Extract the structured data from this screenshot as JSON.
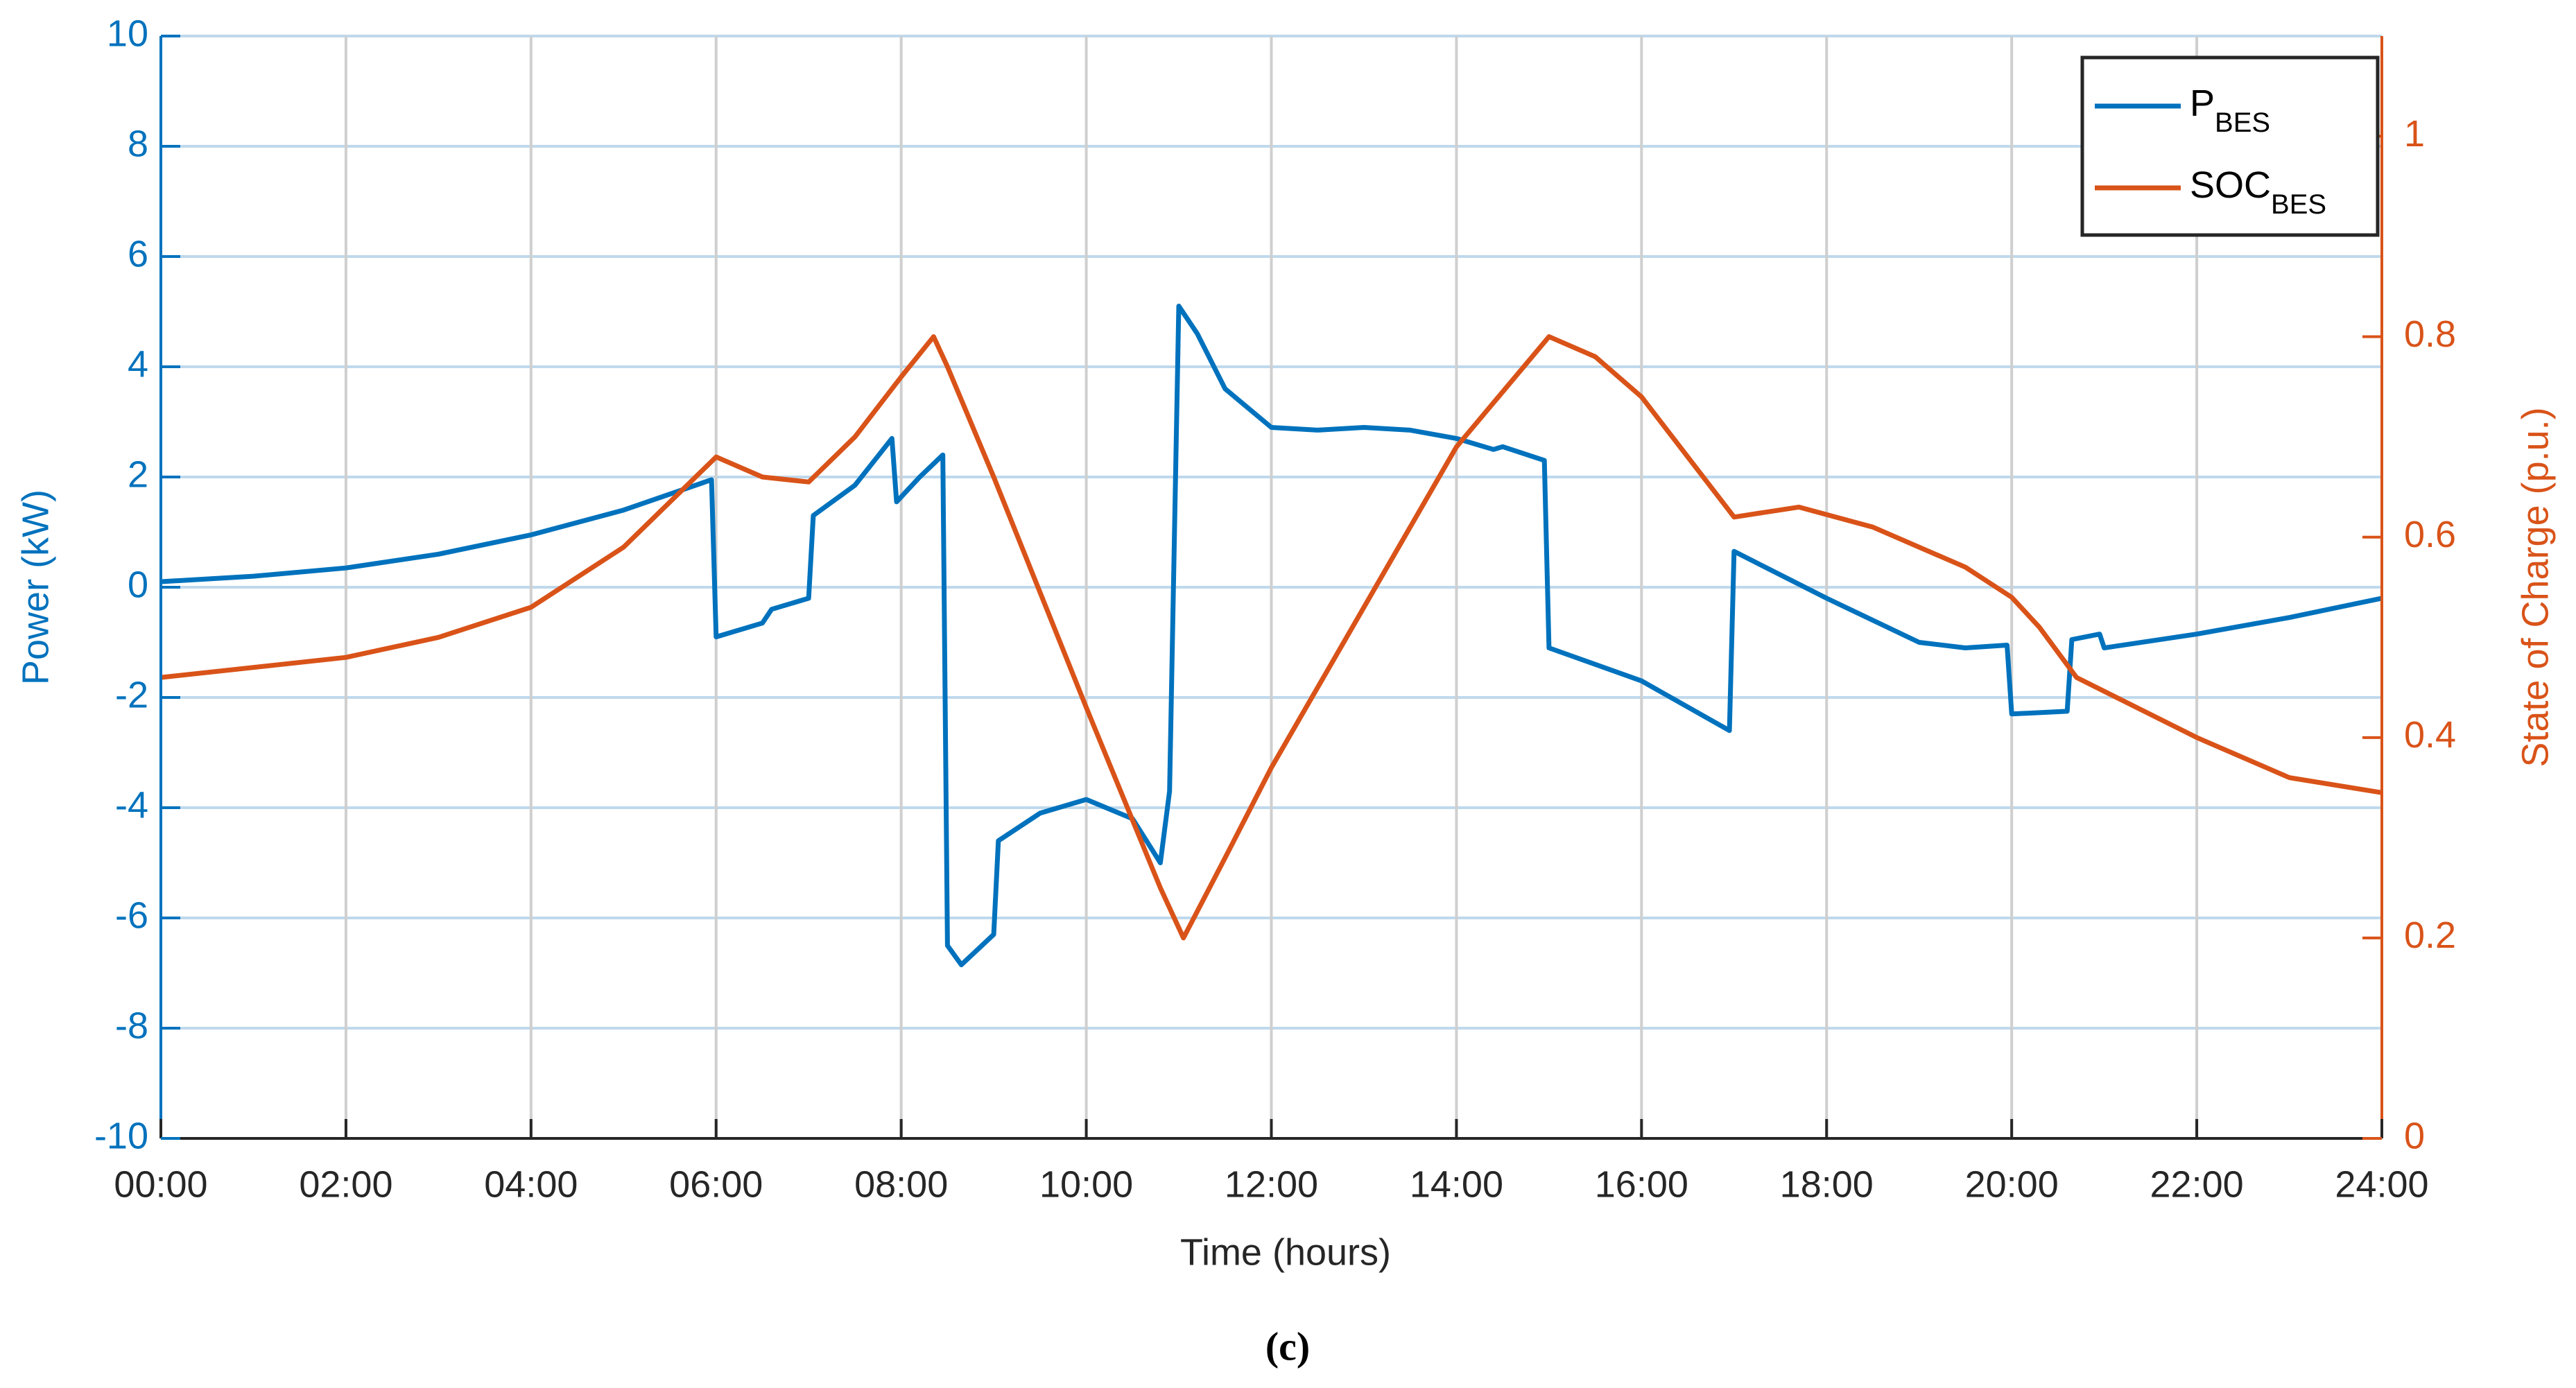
{
  "chart_data": {
    "type": "line",
    "xlabel": "Time (hours)",
    "ylabel": "Power (kW)",
    "y2label": "State of Charge (p.u.)",
    "caption": "(c)",
    "xlim": [
      0,
      24
    ],
    "xticks": [
      {
        "value": 0,
        "label": "00:00"
      },
      {
        "value": 2,
        "label": "02:00"
      },
      {
        "value": 4,
        "label": "04:00"
      },
      {
        "value": 6,
        "label": "06:00"
      },
      {
        "value": 8,
        "label": "08:00"
      },
      {
        "value": 10,
        "label": "10:00"
      },
      {
        "value": 12,
        "label": "12:00"
      },
      {
        "value": 14,
        "label": "14:00"
      },
      {
        "value": 16,
        "label": "16:00"
      },
      {
        "value": 18,
        "label": "18:00"
      },
      {
        "value": 20,
        "label": "20:00"
      },
      {
        "value": 22,
        "label": "22:00"
      },
      {
        "value": 24,
        "label": "24:00"
      }
    ],
    "ylim": [
      -10,
      10
    ],
    "yticks": [
      -10,
      -8,
      -6,
      -4,
      -2,
      0,
      2,
      4,
      6,
      8,
      10
    ],
    "y2lim": [
      0,
      1.1
    ],
    "y2ticks": [
      0,
      0.2,
      0.4,
      0.6,
      0.8,
      1
    ],
    "grid": true,
    "legend": "upper right",
    "series": [
      {
        "name": "P",
        "name_sub": "BES",
        "color": "#0072bd",
        "axis": "y",
        "x": [
          0,
          1,
          2,
          3,
          4,
          5,
          5.95,
          6.0,
          6.5,
          6.6,
          7.0,
          7.05,
          7.5,
          7.9,
          7.95,
          8.2,
          8.45,
          8.5,
          8.65,
          9.0,
          9.05,
          9.5,
          10.0,
          10.5,
          10.8,
          10.9,
          11.0,
          11.2,
          11.5,
          12.0,
          12.5,
          13.0,
          13.5,
          14.0,
          14.4,
          14.5,
          14.95,
          15.0,
          16.0,
          16.95,
          17.0,
          18.0,
          19.0,
          19.5,
          19.95,
          20.0,
          20.6,
          20.65,
          20.95,
          21.0,
          22.0,
          23.0,
          24.0
        ],
        "values": [
          0.1,
          0.2,
          0.35,
          0.6,
          0.95,
          1.4,
          1.95,
          -0.9,
          -0.65,
          -0.4,
          -0.2,
          1.3,
          1.85,
          2.7,
          1.55,
          2.0,
          2.4,
          -6.5,
          -6.85,
          -6.3,
          -4.6,
          -4.1,
          -3.85,
          -4.2,
          -5.0,
          -3.7,
          5.1,
          4.6,
          3.6,
          2.9,
          2.85,
          2.9,
          2.85,
          2.7,
          2.5,
          2.55,
          2.3,
          -1.1,
          -1.7,
          -2.6,
          0.65,
          -0.2,
          -1.0,
          -1.1,
          -1.05,
          -2.3,
          -2.25,
          -0.95,
          -0.85,
          -1.1,
          -0.85,
          -0.55,
          -0.2
        ]
      },
      {
        "name": "SOC",
        "name_sub": "BES",
        "color": "#d95319",
        "axis": "y2",
        "x": [
          0,
          2,
          3,
          4,
          5,
          6,
          6.5,
          7.0,
          7.5,
          8.0,
          8.35,
          8.5,
          9,
          10,
          10.8,
          11.05,
          11.5,
          12,
          13,
          14,
          15,
          15.5,
          16,
          17,
          17.7,
          18.5,
          19.5,
          20,
          20.3,
          20.7,
          22,
          23,
          24
        ],
        "values": [
          0.46,
          0.48,
          0.5,
          0.53,
          0.59,
          0.68,
          0.66,
          0.655,
          0.7,
          0.76,
          0.8,
          0.77,
          0.66,
          0.43,
          0.25,
          0.2,
          0.28,
          0.37,
          0.53,
          0.69,
          0.8,
          0.78,
          0.74,
          0.62,
          0.63,
          0.61,
          0.57,
          0.54,
          0.51,
          0.46,
          0.4,
          0.36,
          0.345
        ]
      }
    ]
  }
}
